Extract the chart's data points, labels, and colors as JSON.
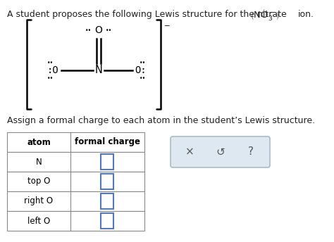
{
  "bg_color": "#ffffff",
  "title_text": "A student proposes the following Lewis structure for the nitrate",
  "ion_formula": "ion.",
  "assign_text": "Assign a formal charge to each atom in the student’s Lewis structure.",
  "table_col1": "atom",
  "table_col2": "formal charge",
  "table_rows": [
    "N",
    "top O",
    "right O",
    "left O"
  ],
  "input_box_color": "#5577bb",
  "symbol_bg": "#dde8f0",
  "symbol_border": "#aabbcc",
  "symbols": [
    "×",
    "↺",
    "?"
  ]
}
